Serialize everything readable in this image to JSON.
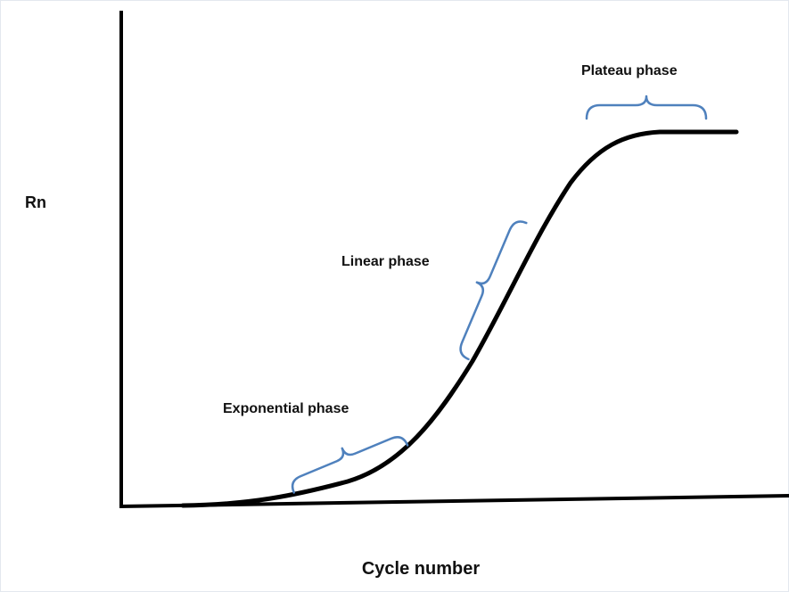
{
  "axes": {
    "y_label": "Rn",
    "x_label": "Cycle number"
  },
  "phases": [
    {
      "label": "Exponential phase"
    },
    {
      "label": "Linear phase"
    },
    {
      "label": "Plateau phase"
    }
  ]
}
